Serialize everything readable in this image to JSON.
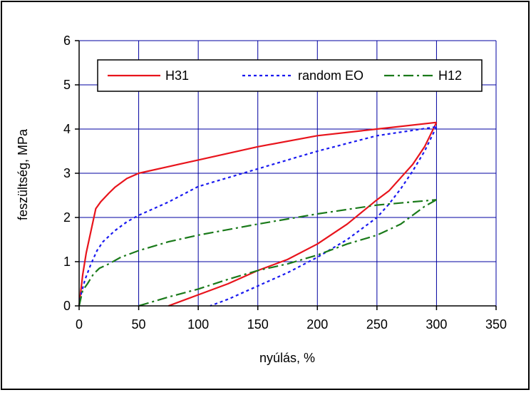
{
  "chart_data": {
    "type": "line",
    "title": "",
    "xlabel": "nyúlás, %",
    "ylabel": "feszültség, MPa",
    "xlim": [
      0,
      350
    ],
    "ylim": [
      0,
      6
    ],
    "x_ticks": [
      "0",
      "50",
      "100",
      "150",
      "200",
      "250",
      "300",
      "350"
    ],
    "y_ticks": [
      "0",
      "1",
      "2",
      "3",
      "4",
      "5",
      "6"
    ],
    "grid": true,
    "legend_position": "top",
    "plot_background": "#ffffff",
    "grid_color": "#0000a0",
    "series": [
      {
        "name": "H31",
        "color": "#e8141c",
        "dash": "solid",
        "loading": [
          [
            0,
            0
          ],
          [
            3,
            0.7
          ],
          [
            6,
            1.2
          ],
          [
            10,
            1.7
          ],
          [
            14,
            2.2
          ],
          [
            18,
            2.35
          ],
          [
            25,
            2.55
          ],
          [
            30,
            2.68
          ],
          [
            40,
            2.88
          ],
          [
            50,
            3.0
          ],
          [
            75,
            3.15
          ],
          [
            100,
            3.3
          ],
          [
            150,
            3.6
          ],
          [
            200,
            3.85
          ],
          [
            250,
            4.0
          ],
          [
            300,
            4.15
          ]
        ],
        "unloading": [
          [
            300,
            4.15
          ],
          [
            290,
            3.6
          ],
          [
            280,
            3.2
          ],
          [
            270,
            2.9
          ],
          [
            260,
            2.6
          ],
          [
            250,
            2.4
          ],
          [
            225,
            1.85
          ],
          [
            200,
            1.4
          ],
          [
            175,
            1.05
          ],
          [
            150,
            0.8
          ],
          [
            125,
            0.5
          ],
          [
            100,
            0.25
          ],
          [
            75,
            0
          ]
        ]
      },
      {
        "name": "random EO",
        "color": "#1a1af0",
        "dash": "dotted",
        "loading": [
          [
            0,
            0
          ],
          [
            2,
            0.3
          ],
          [
            5,
            0.6
          ],
          [
            10,
            0.95
          ],
          [
            15,
            1.25
          ],
          [
            20,
            1.45
          ],
          [
            30,
            1.7
          ],
          [
            40,
            1.9
          ],
          [
            50,
            2.05
          ],
          [
            75,
            2.35
          ],
          [
            100,
            2.7
          ],
          [
            150,
            3.1
          ],
          [
            200,
            3.5
          ],
          [
            250,
            3.85
          ],
          [
            300,
            4.05
          ]
        ],
        "unloading": [
          [
            300,
            4.05
          ],
          [
            290,
            3.5
          ],
          [
            280,
            3.05
          ],
          [
            270,
            2.65
          ],
          [
            260,
            2.3
          ],
          [
            250,
            2.0
          ],
          [
            225,
            1.5
          ],
          [
            200,
            1.1
          ],
          [
            175,
            0.75
          ],
          [
            150,
            0.45
          ],
          [
            125,
            0.15
          ],
          [
            110,
            0
          ]
        ]
      },
      {
        "name": "H12",
        "color": "#1a7a1a",
        "dash": "dash-dot",
        "loading": [
          [
            0,
            0
          ],
          [
            3,
            0.35
          ],
          [
            7,
            0.5
          ],
          [
            12,
            0.72
          ],
          [
            17,
            0.85
          ],
          [
            25,
            0.95
          ],
          [
            35,
            1.1
          ],
          [
            50,
            1.25
          ],
          [
            75,
            1.45
          ],
          [
            100,
            1.6
          ],
          [
            150,
            1.85
          ],
          [
            200,
            2.08
          ],
          [
            250,
            2.28
          ],
          [
            300,
            2.4
          ]
        ],
        "unloading": [
          [
            300,
            2.4
          ],
          [
            290,
            2.25
          ],
          [
            280,
            2.05
          ],
          [
            270,
            1.85
          ],
          [
            250,
            1.6
          ],
          [
            225,
            1.4
          ],
          [
            200,
            1.15
          ],
          [
            175,
            0.95
          ],
          [
            150,
            0.8
          ],
          [
            125,
            0.6
          ],
          [
            100,
            0.38
          ],
          [
            75,
            0.2
          ],
          [
            50,
            0
          ]
        ]
      }
    ]
  }
}
